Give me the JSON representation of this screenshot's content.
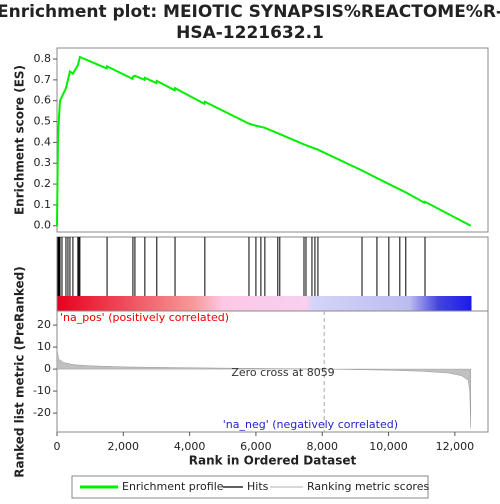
{
  "chart_data": [
    {
      "type": "line",
      "title": [
        "Enrichment plot: MEIOTIC SYNAPSIS%REACTOME%R-",
        "HSA-1221632.1"
      ],
      "ylabel": "Enrichment score (ES)",
      "xlim": [
        0,
        13000
      ],
      "ylim": [
        -0.03,
        0.853
      ],
      "yticks": [
        {
          "value": 0,
          "label": "0.0"
        },
        0.1,
        0.2,
        0.3,
        0.4,
        0.5,
        0.6,
        0.7,
        0.8
      ],
      "x": [
        0,
        30,
        60,
        90,
        150,
        270,
        330,
        390,
        480,
        630,
        660,
        690,
        1500,
        1510,
        2280,
        2290,
        2350,
        2640,
        2650,
        3000,
        3010,
        3550,
        3560,
        4450,
        4460,
        5790,
        6000,
        6270,
        6720,
        7450,
        7870,
        9200,
        10010,
        10520,
        11090,
        11100,
        12480
      ],
      "series": [
        {
          "name": "Enrichment profile",
          "color": "#00ee00",
          "values": [
            0,
            0.42,
            0.52,
            0.6,
            0.62,
            0.66,
            0.7,
            0.74,
            0.73,
            0.77,
            0.79,
            0.81,
            0.755,
            0.765,
            0.705,
            0.715,
            0.72,
            0.7,
            0.71,
            0.685,
            0.695,
            0.65,
            0.66,
            0.585,
            0.595,
            0.49,
            0.48,
            0.47,
            0.44,
            0.39,
            0.365,
            0.265,
            0.2,
            0.16,
            0.11,
            0.115,
            0
          ]
        }
      ]
    },
    {
      "type": "rug",
      "xlim": [
        0,
        13000
      ],
      "series": [
        {
          "name": "Hits",
          "color": "#000000",
          "x": [
            30,
            60,
            90,
            150,
            270,
            330,
            390,
            480,
            630,
            660,
            690,
            1510,
            2290,
            2350,
            2650,
            3010,
            3560,
            4460,
            5790,
            6000,
            6150,
            6270,
            6660,
            6720,
            7450,
            7510,
            7690,
            7780,
            7870,
            9200,
            9650,
            10010,
            10340,
            10520,
            11100
          ]
        }
      ]
    },
    {
      "type": "area",
      "ylabel": "Ranked list metric (PreRanked)",
      "xlabel": "Rank in Ordered Dataset",
      "xlim": [
        0,
        13000
      ],
      "xticks": [
        0,
        {
          "value": 2000,
          "label": "2,000"
        },
        {
          "value": 4000,
          "label": "4,000"
        },
        {
          "value": 6000,
          "label": "6,000"
        },
        {
          "value": 8000,
          "label": "8,000"
        },
        {
          "value": 10000,
          "label": "10,000"
        },
        {
          "value": 12000,
          "label": "12,000"
        }
      ],
      "ylim": [
        -28.6,
        26.4
      ],
      "yticks": [
        20,
        10,
        0,
        -10,
        -20
      ],
      "x": [
        0,
        50,
        200,
        500,
        1000,
        2000,
        4000,
        6000,
        8059,
        10000,
        11000,
        11800,
        12200,
        12400,
        12450,
        12480
      ],
      "series": [
        {
          "name": "Ranking metric scores",
          "color": "#c0c0c0",
          "values": [
            9,
            4.5,
            3,
            2,
            1.5,
            1,
            0.6,
            0.3,
            0,
            -0.5,
            -1,
            -1.8,
            -3,
            -5,
            -10,
            -27
          ]
        }
      ],
      "zero_cross": 8059,
      "annotations": [
        {
          "text": "'na_pos' (positively correlated)",
          "color": "#ee0000"
        },
        {
          "text": "Zero cross at 8059",
          "color": "#333333"
        },
        {
          "text": "'na_neg' (negatively correlated)",
          "color": "#2222cc"
        }
      ]
    }
  ]
}
